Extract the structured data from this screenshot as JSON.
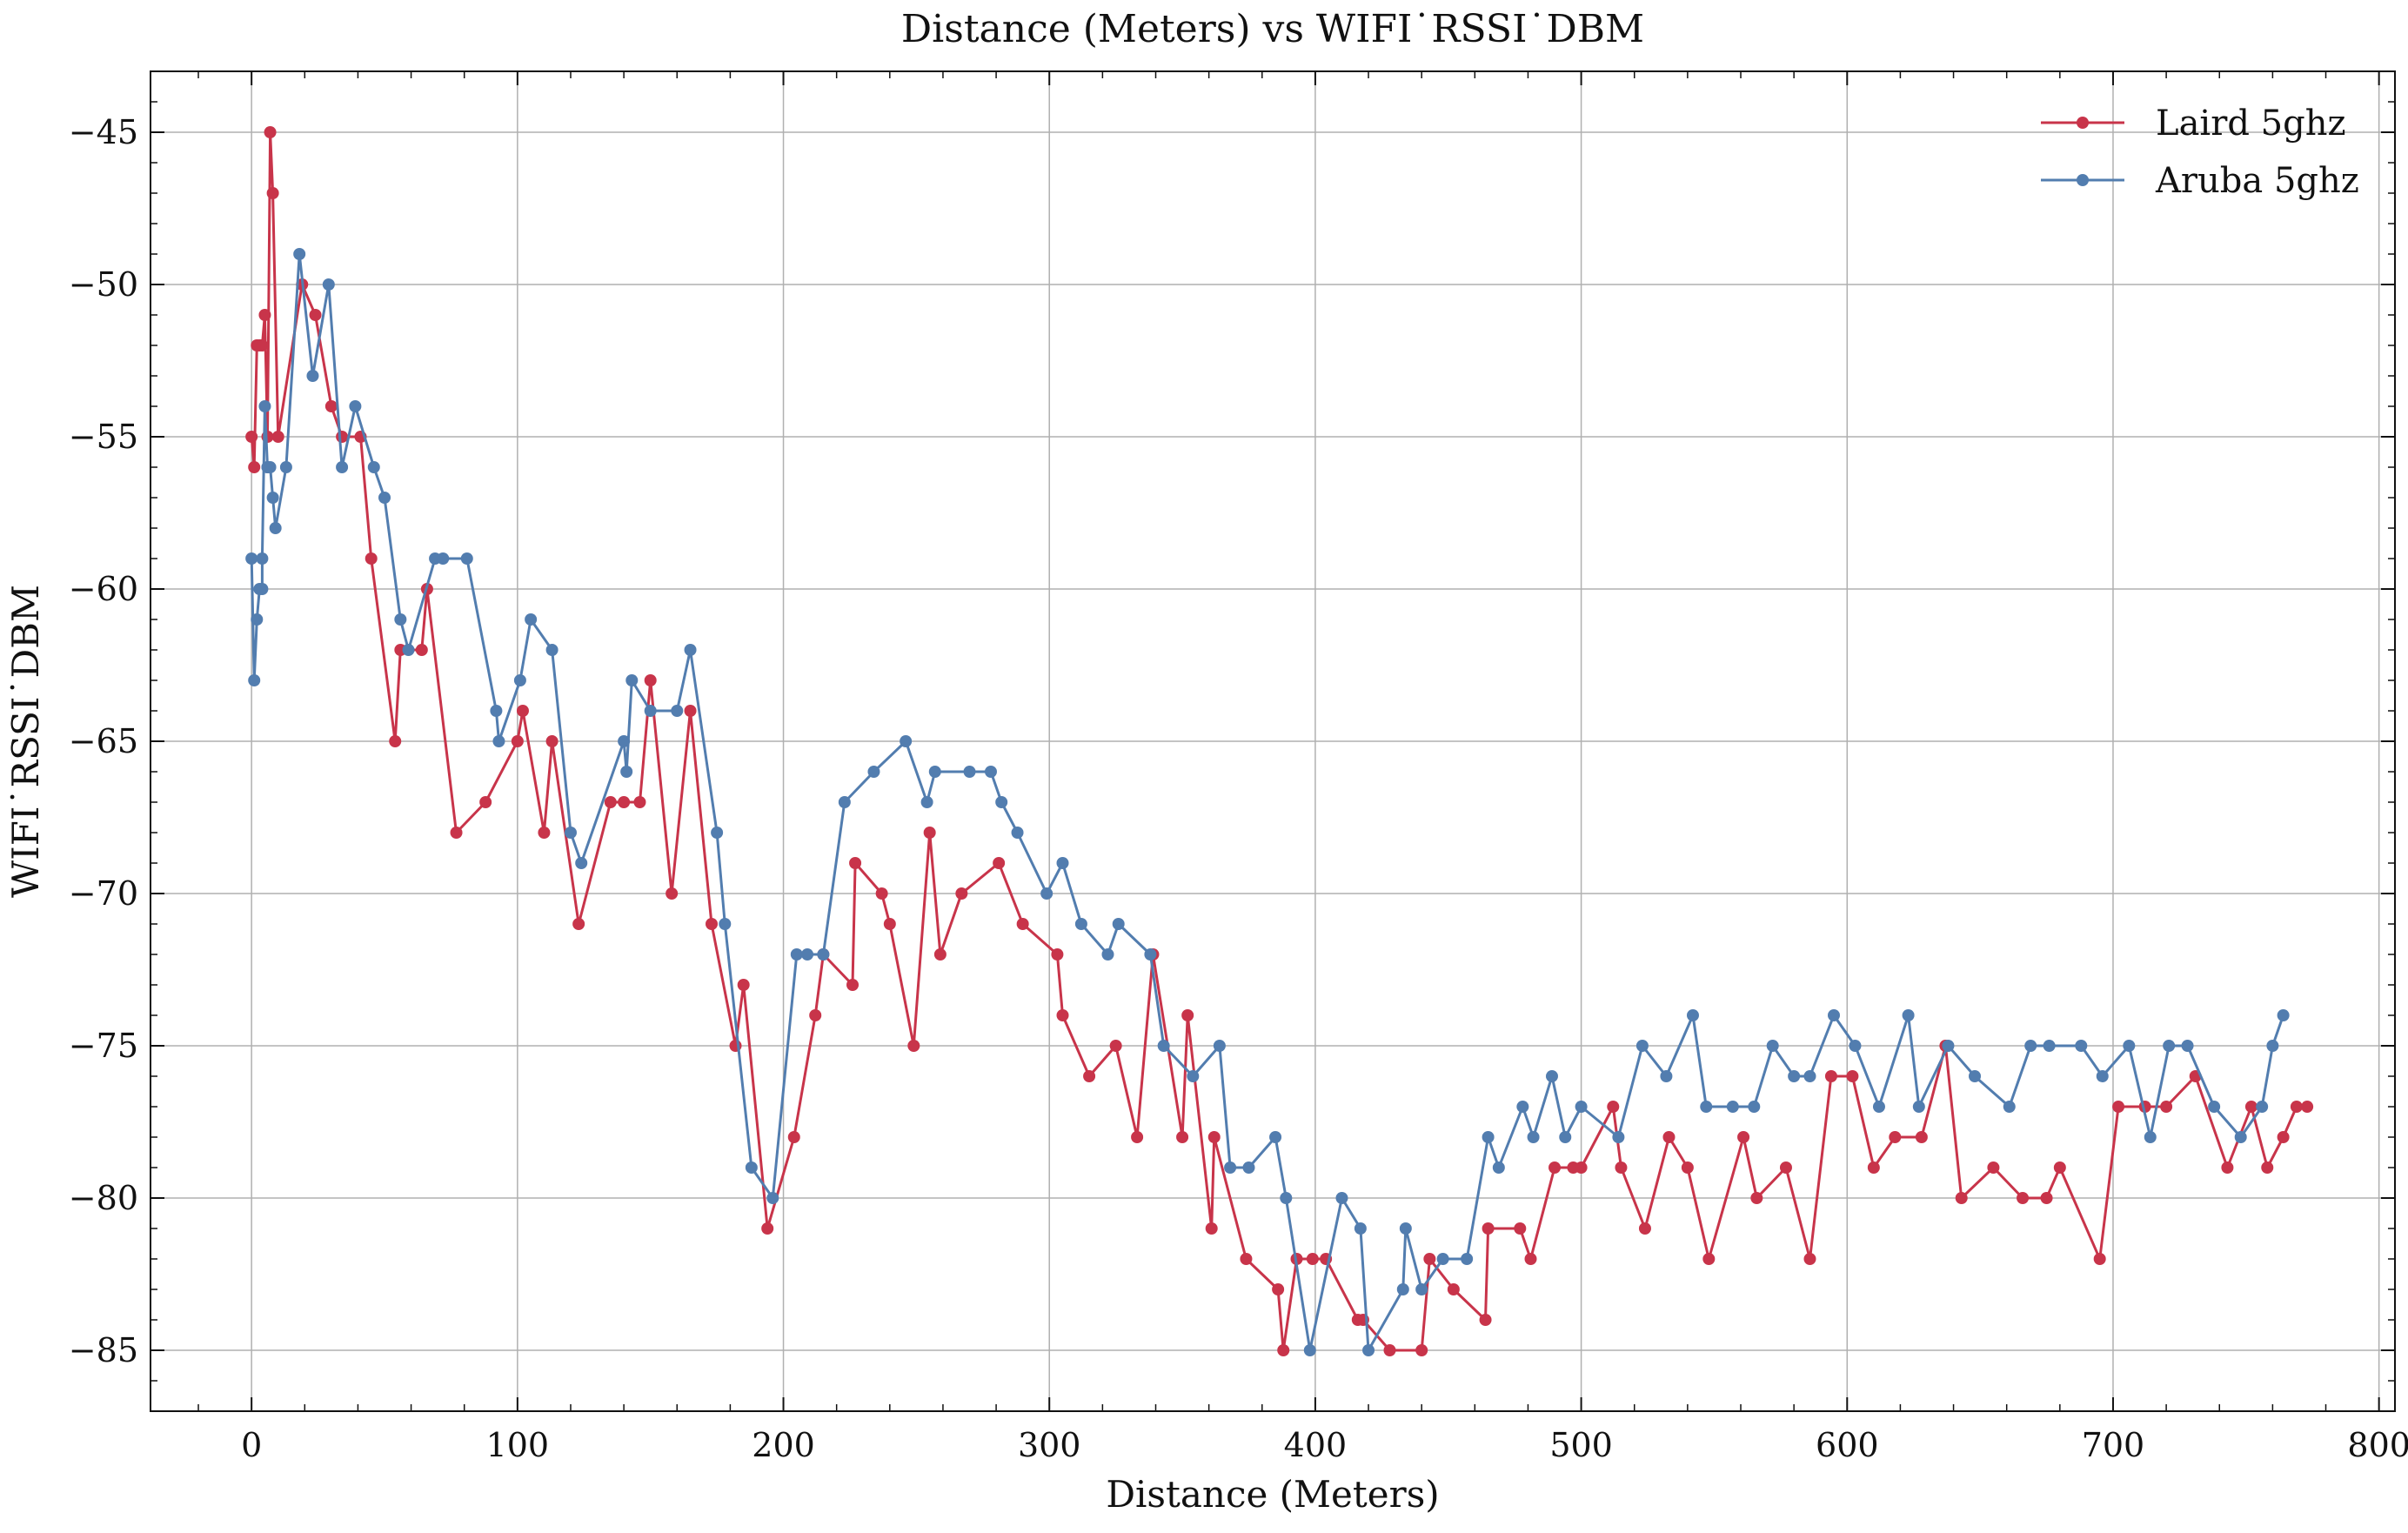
{
  "chart_data": {
    "type": "line",
    "title": "Distance (Meters) vs WIFI˙RSSI˙DBM",
    "xlabel": "Distance (Meters)",
    "ylabel": "WIFI˙RSSI˙DBM",
    "xlim": [
      -38,
      806
    ],
    "ylim": [
      -87,
      -43
    ],
    "xticks": [
      0,
      100,
      200,
      300,
      400,
      500,
      600,
      700,
      800
    ],
    "yticks": [
      -45,
      -50,
      -55,
      -60,
      -65,
      -70,
      -75,
      -80,
      -85
    ],
    "xtick_labels": [
      "0",
      "100",
      "200",
      "300",
      "400",
      "500",
      "600",
      "700",
      "800"
    ],
    "ytick_labels": [
      "−45",
      "−50",
      "−55",
      "−60",
      "−65",
      "−70",
      "−75",
      "−80",
      "−85"
    ],
    "grid": true,
    "legend_position": "top-right",
    "series": [
      {
        "name": "Laird 5ghz",
        "color": "#c8344a",
        "x": [
          0,
          1,
          2,
          3,
          4,
          5,
          6,
          7,
          8,
          10,
          19,
          24,
          30,
          34,
          41,
          45,
          54,
          56,
          64,
          66,
          77,
          88,
          100,
          102,
          110,
          113,
          123,
          135,
          140,
          146,
          150,
          158,
          165,
          173,
          182,
          185,
          194,
          204,
          212,
          215,
          226,
          227,
          237,
          240,
          249,
          255,
          259,
          267,
          281,
          290,
          303,
          305,
          315,
          325,
          333,
          339,
          350,
          352,
          361,
          362,
          374,
          386,
          388,
          393,
          399,
          404,
          416,
          418,
          428,
          440,
          443,
          452,
          464,
          465,
          477,
          481,
          490,
          497,
          500,
          512,
          515,
          524,
          533,
          540,
          548,
          561,
          566,
          577,
          586,
          594,
          602,
          610,
          618,
          628,
          637,
          643,
          655,
          666,
          675,
          680,
          695,
          702,
          712,
          720,
          731,
          743,
          752,
          758,
          764,
          769,
          773
        ],
        "y": [
          -55,
          -56,
          -52,
          -52,
          -52,
          -51,
          -55,
          -45,
          -47,
          -55,
          -50,
          -51,
          -54,
          -55,
          -55,
          -59,
          -65,
          -62,
          -62,
          -60,
          -68,
          -67,
          -65,
          -64,
          -68,
          -65,
          -71,
          -67,
          -67,
          -67,
          -63,
          -70,
          -64,
          -71,
          -75,
          -73,
          -81,
          -78,
          -74,
          -72,
          -73,
          -69,
          -70,
          -71,
          -75,
          -68,
          -72,
          -70,
          -69,
          -71,
          -72,
          -74,
          -76,
          -75,
          -78,
          -72,
          -78,
          -74,
          -81,
          -78,
          -82,
          -83,
          -85,
          -82,
          -82,
          -82,
          -84,
          -84,
          -85,
          -85,
          -82,
          -83,
          -84,
          -81,
          -81,
          -82,
          -79,
          -79,
          -79,
          -77,
          -79,
          -81,
          -78,
          -79,
          -82,
          -78,
          -80,
          -79,
          -82,
          -76,
          -76,
          -79,
          -78,
          -78,
          -75,
          -80,
          -79,
          -80,
          -80,
          -79,
          -82,
          -77,
          -77,
          -77,
          -76,
          -79,
          -77,
          -79,
          -78,
          -77,
          -77
        ]
      },
      {
        "name": "Aruba 5ghz",
        "color": "#527daf",
        "x": [
          0,
          1,
          2,
          3,
          4,
          4,
          5,
          6,
          6,
          7,
          8,
          9,
          13,
          18,
          23,
          29,
          34,
          39,
          46,
          50,
          56,
          59,
          69,
          72,
          81,
          92,
          93,
          101,
          105,
          113,
          120,
          124,
          140,
          141,
          143,
          150,
          160,
          165,
          175,
          178,
          188,
          196,
          205,
          209,
          215,
          223,
          234,
          246,
          254,
          257,
          270,
          278,
          282,
          288,
          299,
          305,
          312,
          322,
          326,
          338,
          343,
          354,
          364,
          368,
          375,
          385,
          389,
          398,
          410,
          417,
          420,
          433,
          434,
          440,
          448,
          457,
          465,
          469,
          478,
          482,
          489,
          494,
          500,
          514,
          523,
          532,
          542,
          547,
          557,
          565,
          572,
          580,
          586,
          595,
          603,
          612,
          623,
          627,
          638,
          648,
          661,
          669,
          676,
          688,
          696,
          706,
          714,
          721,
          728,
          738,
          748,
          756,
          760,
          764
        ],
        "y": [
          -59,
          -63,
          -61,
          -60,
          -60,
          -59,
          -54,
          -56,
          -56,
          -56,
          -57,
          -58,
          -56,
          -49,
          -53,
          -50,
          -56,
          -54,
          -56,
          -57,
          -61,
          -62,
          -59,
          -59,
          -59,
          -64,
          -65,
          -63,
          -61,
          -62,
          -68,
          -69,
          -65,
          -66,
          -63,
          -64,
          -64,
          -62,
          -68,
          -71,
          -79,
          -80,
          -72,
          -72,
          -72,
          -67,
          -66,
          -65,
          -67,
          -66,
          -66,
          -66,
          -67,
          -68,
          -70,
          -69,
          -71,
          -72,
          -71,
          -72,
          -75,
          -76,
          -75,
          -79,
          -79,
          -78,
          -80,
          -85,
          -80,
          -81,
          -85,
          -83,
          -81,
          -83,
          -82,
          -82,
          -78,
          -79,
          -77,
          -78,
          -76,
          -78,
          -77,
          -78,
          -75,
          -76,
          -74,
          -77,
          -77,
          -77,
          -75,
          -76,
          -76,
          -74,
          -75,
          -77,
          -74,
          -77,
          -75,
          -76,
          -77,
          -75,
          -75,
          -75,
          -76,
          -75,
          -78,
          -75,
          -75,
          -77,
          -78,
          -77,
          -75,
          -74
        ]
      }
    ]
  }
}
